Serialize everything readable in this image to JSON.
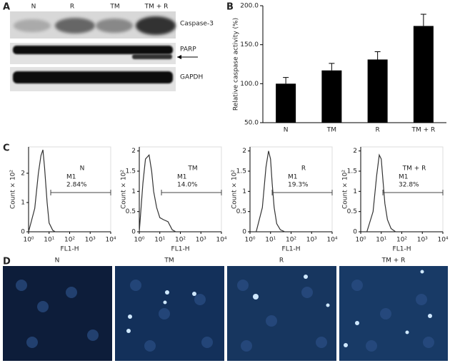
{
  "panel_labels": [
    "A",
    "B",
    "C",
    "D"
  ],
  "blot": {
    "lanes": [
      "N",
      "R",
      "TM",
      "TM + R"
    ],
    "bands": [
      "Caspase-3",
      "PARP",
      "GAPDH"
    ]
  },
  "chart_data": [
    {
      "type": "bar",
      "categories": [
        "N",
        "TM",
        "R",
        "TM + R"
      ],
      "values": [
        100,
        117,
        131,
        174
      ],
      "errors": [
        8,
        9,
        10,
        15
      ],
      "color": "#000000",
      "ylim": [
        50,
        200
      ],
      "yticks": [
        {
          "value": 50,
          "label": "50.0"
        },
        {
          "value": 100,
          "label": "100.0"
        },
        {
          "value": 150,
          "label": "150.0"
        },
        {
          "value": 200,
          "label": "200.0"
        }
      ],
      "ylabel": "Relative caspase activity (%)"
    },
    {
      "type": "line",
      "title": "N",
      "x": [
        1,
        2,
        3,
        4,
        5,
        6,
        8,
        10,
        15,
        20
      ],
      "values": [
        0,
        0.8,
        2.0,
        2.6,
        2.8,
        2.2,
        1.0,
        0.3,
        0.05,
        0
      ],
      "color": "#333333",
      "log_x": true,
      "xlim": [
        1,
        10000
      ],
      "xticks": [
        {
          "value": 1,
          "label": "10⁰"
        },
        {
          "value": 10,
          "label": "10¹"
        },
        {
          "value": 100,
          "label": "10²"
        },
        {
          "value": 1000,
          "label": "10³"
        },
        {
          "value": 10000,
          "label": "10⁴"
        }
      ],
      "ylim": [
        0,
        2.9
      ],
      "yticks": [
        0,
        1,
        2
      ],
      "xlabel": "FL1-H",
      "ylabel": "Count × 10²",
      "gate_label": "M1",
      "gate": [
        12,
        10000
      ],
      "gate_value": 2.84,
      "gate_value_label": "2.84%"
    },
    {
      "type": "line",
      "title": "TM",
      "x": [
        1,
        1.5,
        2,
        3,
        4,
        5,
        7,
        10,
        15,
        25,
        40,
        60
      ],
      "values": [
        0,
        1.2,
        1.8,
        1.9,
        1.5,
        1.0,
        0.6,
        0.35,
        0.3,
        0.25,
        0.05,
        0
      ],
      "color": "#333333",
      "log_x": true,
      "xlim": [
        1,
        10000
      ],
      "xticks": [
        {
          "value": 1,
          "label": "10⁰"
        },
        {
          "value": 10,
          "label": "10¹"
        },
        {
          "value": 100,
          "label": "10²"
        },
        {
          "value": 1000,
          "label": "10³"
        },
        {
          "value": 10000,
          "label": "10⁴"
        }
      ],
      "ylim": [
        0,
        2.1
      ],
      "yticks": [
        0,
        0.5,
        1,
        1.5,
        2
      ],
      "xlabel": "FL1-H",
      "ylabel": "Count × 10²",
      "gate_label": "M1",
      "gate": [
        12,
        10000
      ],
      "gate_value": 14.0,
      "gate_value_label": "14.0%"
    },
    {
      "type": "line",
      "title": "R",
      "x": [
        2,
        4,
        6,
        8,
        10,
        12,
        15,
        20,
        30,
        50
      ],
      "values": [
        0,
        0.6,
        1.6,
        2.0,
        1.8,
        1.2,
        0.6,
        0.2,
        0.05,
        0
      ],
      "color": "#333333",
      "log_x": true,
      "xlim": [
        1,
        10000
      ],
      "xticks": [
        {
          "value": 1,
          "label": "10⁰"
        },
        {
          "value": 10,
          "label": "10¹"
        },
        {
          "value": 100,
          "label": "10²"
        },
        {
          "value": 1000,
          "label": "10³"
        },
        {
          "value": 10000,
          "label": "10⁴"
        }
      ],
      "ylim": [
        0,
        2.1
      ],
      "yticks": [
        0,
        0.5,
        1,
        1.5,
        2
      ],
      "xlabel": "FL1-H",
      "ylabel": "Count × 10²",
      "gate_label": "M1",
      "gate": [
        12,
        10000
      ],
      "gate_value": 19.3,
      "gate_value_label": "19.3%"
    },
    {
      "type": "line",
      "title": "TM + R",
      "x": [
        2,
        4,
        6,
        8,
        10,
        12,
        15,
        20,
        30,
        50
      ],
      "values": [
        0,
        0.5,
        1.4,
        1.9,
        1.8,
        1.3,
        0.7,
        0.3,
        0.08,
        0
      ],
      "color": "#333333",
      "log_x": true,
      "xlim": [
        1,
        10000
      ],
      "xticks": [
        {
          "value": 1,
          "label": "10⁰"
        },
        {
          "value": 10,
          "label": "10¹"
        },
        {
          "value": 100,
          "label": "10²"
        },
        {
          "value": 1000,
          "label": "10³"
        },
        {
          "value": 10000,
          "label": "10⁴"
        }
      ],
      "ylim": [
        0,
        2.1
      ],
      "yticks": [
        0,
        0.5,
        1,
        1.5,
        2
      ],
      "xlabel": "FL1-H",
      "ylabel": "Count × 10²",
      "gate_label": "M1",
      "gate": [
        12,
        10000
      ],
      "gate_value": 32.8,
      "gate_value_label": "32.8%"
    }
  ],
  "images": {
    "labels": [
      "N",
      "TM",
      "R",
      "TM + R"
    ]
  }
}
